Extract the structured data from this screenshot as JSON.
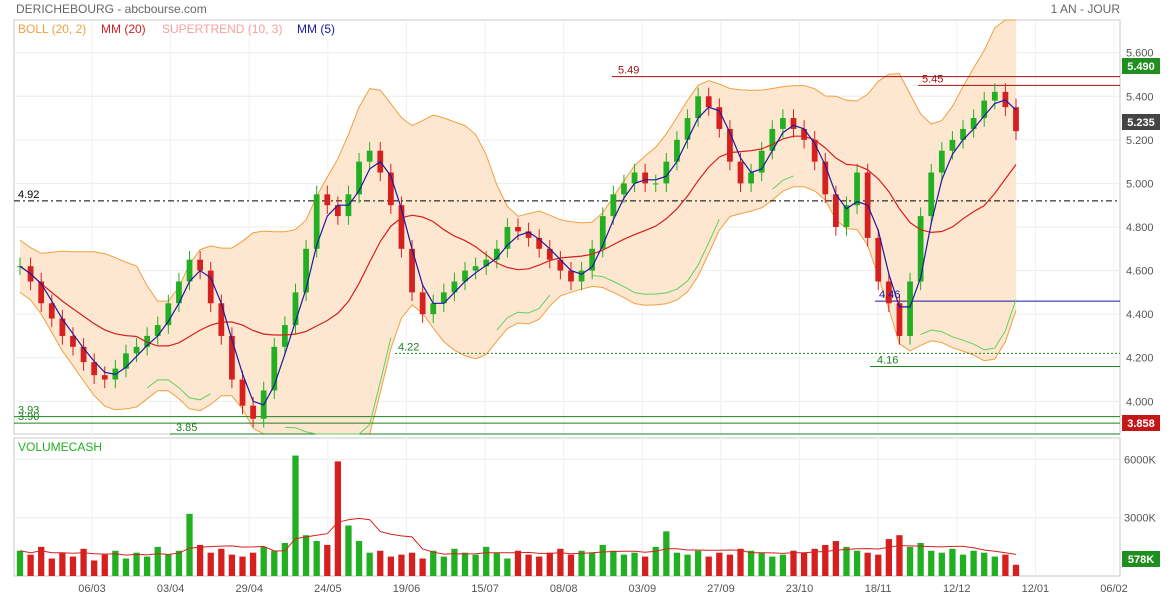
{
  "header": {
    "symbol_title": "DERICHEBOURG - abcbourse.com",
    "period": "1 AN - JOUR"
  },
  "indicators": [
    {
      "label": "BOLL (20, 2)",
      "color": "#f0a040"
    },
    {
      "label": "MM (20)",
      "color": "#d62020"
    },
    {
      "label": "SUPERTREND (10, 3)",
      "color": "#f4a0a0"
    },
    {
      "label": "MM (5)",
      "color": "#1a1aa0"
    }
  ],
  "volume_label": "VOLUMECASH",
  "badges": {
    "last_close": "5.235",
    "upper_level": "5.490",
    "lower_level": "3.858",
    "volume_last": "578K"
  },
  "chart_data": [
    {
      "type": "candlestick",
      "ylim": [
        3.85,
        5.75
      ],
      "y_ticks": [
        "5.600",
        "5.400",
        "5.200",
        "5.000",
        "4.800",
        "4.600",
        "4.400",
        "4.200",
        "4.000"
      ],
      "x_ticks": [
        "06/03",
        "03/04",
        "29/04",
        "24/05",
        "19/06",
        "15/07",
        "08/08",
        "03/09",
        "27/09",
        "23/10",
        "18/11",
        "12/12",
        "12/01",
        "06/02"
      ],
      "close_series": [
        4.62,
        4.55,
        4.45,
        4.38,
        4.3,
        4.25,
        4.18,
        4.12,
        4.1,
        4.15,
        4.22,
        4.25,
        4.3,
        4.35,
        4.45,
        4.55,
        4.65,
        4.6,
        4.45,
        4.3,
        4.1,
        3.98,
        3.92,
        4.05,
        4.25,
        4.35,
        4.5,
        4.7,
        4.95,
        4.9,
        4.85,
        4.95,
        5.1,
        5.15,
        5.05,
        4.9,
        4.7,
        4.5,
        4.4,
        4.45,
        4.5,
        4.55,
        4.6,
        4.62,
        4.65,
        4.7,
        4.8,
        4.78,
        4.75,
        4.7,
        4.65,
        4.6,
        4.55,
        4.6,
        4.7,
        4.85,
        4.95,
        5.0,
        5.05,
        5.0,
        5.0,
        5.1,
        5.2,
        5.3,
        5.4,
        5.35,
        5.25,
        5.1,
        5.0,
        5.05,
        5.15,
        5.25,
        5.3,
        5.25,
        5.2,
        5.1,
        4.95,
        4.8,
        4.9,
        5.05,
        4.75,
        4.55,
        4.45,
        4.3,
        4.55,
        4.85,
        5.05,
        5.15,
        5.2,
        5.25,
        5.3,
        5.38,
        5.42,
        5.35,
        5.24
      ],
      "levels": [
        {
          "label": "5.49",
          "value": 5.49,
          "color": "#a01010"
        },
        {
          "label": "5.45",
          "value": 5.45,
          "color": "#a01010"
        },
        {
          "label": "4.92",
          "value": 4.92,
          "color": "#000000"
        },
        {
          "label": "4.46",
          "value": 4.46,
          "color": "#1a1aa0"
        },
        {
          "label": "4.22",
          "value": 4.22,
          "color": "#208020"
        },
        {
          "label": "4.16",
          "value": 4.16,
          "color": "#208020"
        },
        {
          "label": "3.93",
          "value": 3.93,
          "color": "#208020"
        },
        {
          "label": "3.90",
          "value": 3.9,
          "color": "#208020"
        },
        {
          "label": "3.85",
          "value": 3.85,
          "color": "#208020"
        }
      ]
    },
    {
      "type": "bar",
      "title": "VOLUMECASH",
      "ylim": [
        0,
        7000
      ],
      "y_ticks": [
        "6000K",
        "3000K"
      ],
      "values": [
        1300,
        1100,
        1500,
        900,
        1200,
        1000,
        1400,
        800,
        1100,
        1300,
        900,
        1200,
        1000,
        1500,
        1100,
        1300,
        3200,
        1600,
        1200,
        1400,
        1100,
        1000,
        1200,
        1500,
        1300,
        1700,
        6200,
        2100,
        1800,
        1600,
        5900,
        2600,
        1800,
        1200,
        1300,
        1000,
        1100,
        1200,
        900,
        1300,
        1000,
        1400,
        1200,
        1100,
        1500,
        1200,
        900,
        1300,
        1100,
        1000,
        1200,
        1400,
        1100,
        1300,
        1200,
        1600,
        1300,
        1100,
        1200,
        1000,
        1500,
        2300,
        1200,
        1100,
        1300,
        1000,
        1200,
        1100,
        1400,
        1300,
        1200,
        1000,
        1100,
        1300,
        1200,
        1400,
        1600,
        1800,
        1500,
        1300,
        1200,
        1100,
        1900,
        2100,
        1500,
        1700,
        1300,
        1200,
        1400,
        1100,
        1300,
        1200,
        1000,
        1100,
        578
      ]
    }
  ],
  "colors": {
    "up": "#22b022",
    "down": "#d62020",
    "band_fill": "#fde3c8",
    "band_edge": "#f0a040",
    "ma20": "#d62020",
    "ma5": "#1a1aa0",
    "supertrend_up": "#60d060",
    "supertrend_down": "#f4a0a0"
  }
}
